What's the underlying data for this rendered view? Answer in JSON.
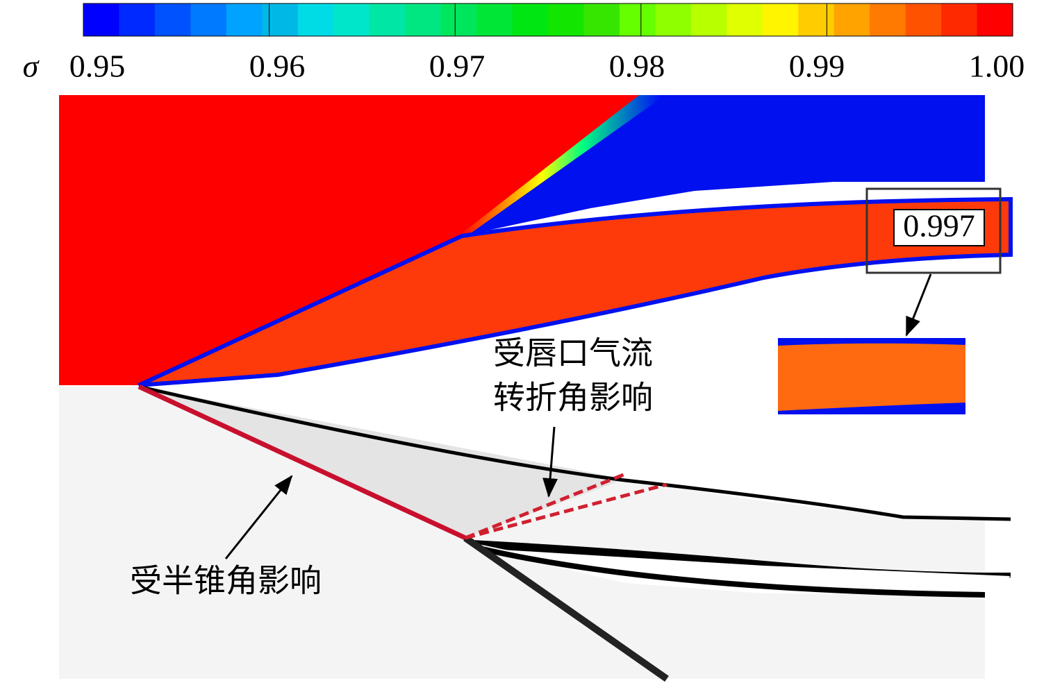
{
  "colorbar": {
    "symbol": "σ",
    "range": [
      0.95,
      1.0
    ],
    "ticks": [
      0.95,
      0.96,
      0.97,
      0.98,
      0.99,
      {
        "value": 1.0,
        "label": "1.00"
      }
    ]
  },
  "annotations": {
    "inset_value": "0.997",
    "lip_line1": "受唇口气流",
    "lip_line2": "转折角影响",
    "cone": "受半锥角影响"
  }
}
